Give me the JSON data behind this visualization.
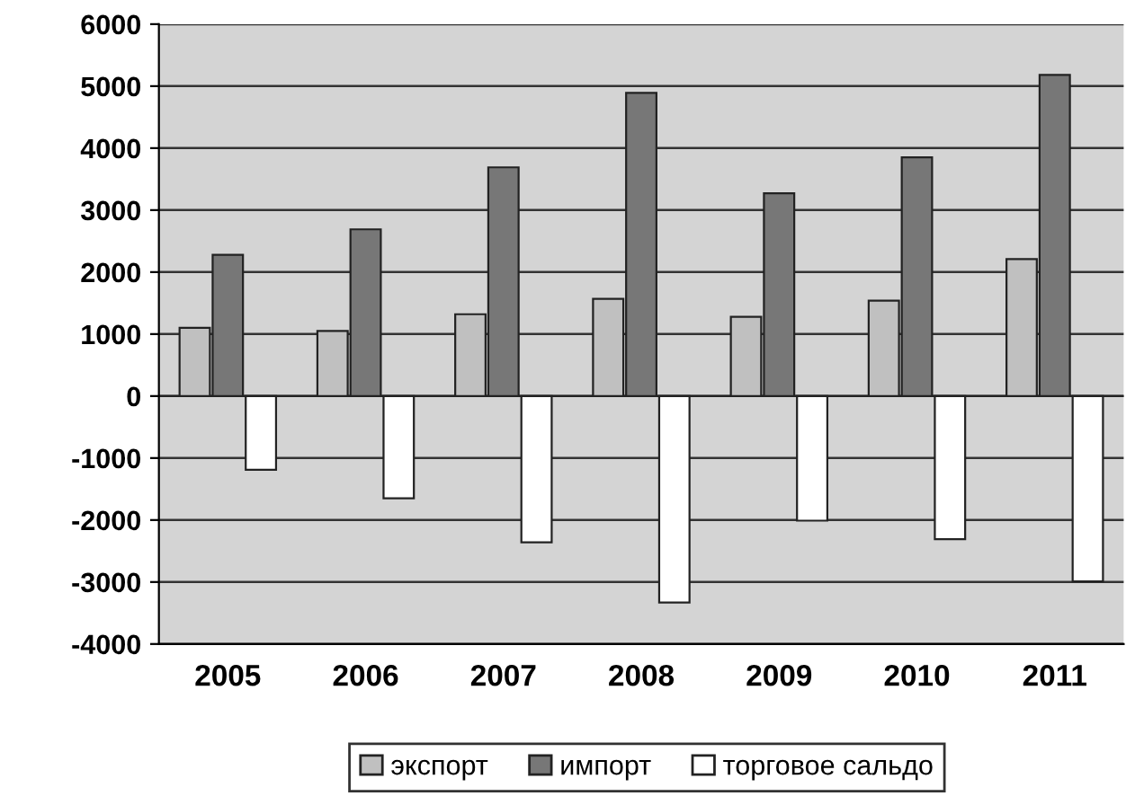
{
  "chart_data": {
    "type": "bar",
    "categories": [
      "2005",
      "2006",
      "2007",
      "2008",
      "2009",
      "2010",
      "2011"
    ],
    "series": [
      {
        "name": "экспорт",
        "color": "#c0c0c0",
        "values": [
          1100,
          1050,
          1320,
          1570,
          1280,
          1540,
          2210
        ]
      },
      {
        "name": "импорт",
        "color": "#777777",
        "values": [
          2280,
          2690,
          3690,
          4890,
          3270,
          3850,
          5180
        ]
      },
      {
        "name": "торговое сальдо",
        "color": "#ffffff",
        "values": [
          -1190,
          -1650,
          -2360,
          -3330,
          -2010,
          -2310,
          -2990
        ]
      }
    ],
    "ylim": [
      -4000,
      6000
    ],
    "yticks": [
      -4000,
      -3000,
      -2000,
      -1000,
      0,
      1000,
      2000,
      3000,
      4000,
      5000,
      6000
    ],
    "grid": "y",
    "legend": "bottom"
  }
}
